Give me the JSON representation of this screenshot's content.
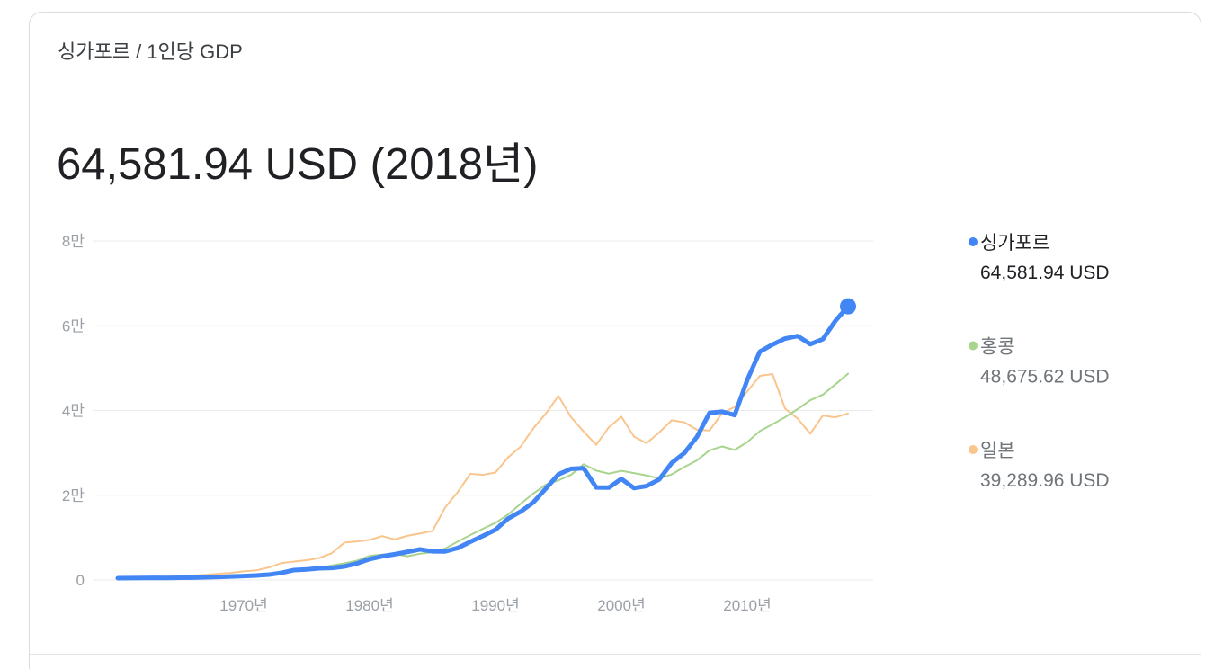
{
  "header": {
    "title": "싱가포르 / 1인당 GDP"
  },
  "headline": "64,581.94 USD (2018년)",
  "chart_data": {
    "type": "line",
    "x": [
      1960,
      1961,
      1962,
      1963,
      1964,
      1965,
      1966,
      1967,
      1968,
      1969,
      1970,
      1971,
      1972,
      1973,
      1974,
      1975,
      1976,
      1977,
      1978,
      1979,
      1980,
      1981,
      1982,
      1983,
      1984,
      1985,
      1986,
      1987,
      1988,
      1989,
      1990,
      1991,
      1992,
      1993,
      1994,
      1995,
      1996,
      1997,
      1998,
      1999,
      2000,
      2001,
      2002,
      2003,
      2004,
      2005,
      2006,
      2007,
      2008,
      2009,
      2010,
      2011,
      2012,
      2013,
      2014,
      2015,
      2016,
      2017,
      2018
    ],
    "xlim": [
      1958,
      2020
    ],
    "xticks": [
      {
        "value": 1970,
        "label": "1970년"
      },
      {
        "value": 1980,
        "label": "1980년"
      },
      {
        "value": 1990,
        "label": "1990년"
      },
      {
        "value": 2000,
        "label": "2000년"
      },
      {
        "value": 2010,
        "label": "2010년"
      }
    ],
    "ylim": [
      0,
      80000
    ],
    "yticks": [
      0,
      {
        "value": 20000,
        "label": "2만"
      },
      {
        "value": 40000,
        "label": "4만"
      },
      {
        "value": 60000,
        "label": "6만"
      },
      {
        "value": 80000,
        "label": "8만"
      }
    ],
    "grid": true,
    "series": [
      {
        "name": "싱가포르",
        "color": "#4285f4",
        "latest_label": "64,581.94 USD",
        "values": [
          428,
          449,
          472,
          511,
          485,
          517,
          567,
          626,
          708,
          813,
          926,
          1071,
          1264,
          1685,
          2342,
          2490,
          2766,
          2848,
          3193,
          3900,
          4928,
          5596,
          6078,
          6633,
          7228,
          6755,
          6736,
          7539,
          9018,
          10394,
          11862,
          14502,
          16135,
          18302,
          21578,
          24915,
          26233,
          26376,
          21829,
          21796,
          23853,
          21700,
          22160,
          23730,
          27609,
          29961,
          33769,
          39433,
          39722,
          38927,
          47237,
          53891,
          55546,
          56967,
          57563,
          55647,
          56828,
          61176,
          64581.94
        ]
      },
      {
        "name": "홍콩",
        "color": "#a8d48e",
        "latest_label": "48,675.62 USD",
        "values": [
          429,
          443,
          485,
          568,
          639,
          706,
          715,
          725,
          718,
          826,
          960,
          1106,
          1380,
          1887,
          2096,
          2253,
          2844,
          3425,
          3924,
          4570,
          5700,
          5991,
          6134,
          5595,
          6208,
          6543,
          7435,
          9071,
          10610,
          12098,
          13486,
          15466,
          17976,
          20396,
          22503,
          23497,
          24818,
          27330,
          25809,
          25092,
          25757,
          25230,
          24666,
          23977,
          24928,
          26650,
          28224,
          30594,
          31516,
          30697,
          32550,
          35142,
          36731,
          38404,
          40315,
          42432,
          43731,
          46166,
          48675.62
        ]
      },
      {
        "name": "일본",
        "color": "#f9c58d",
        "latest_label": "39,289.96 USD",
        "values": [
          479,
          563,
          634,
          718,
          835,
          919,
          1058,
          1228,
          1451,
          1669,
          2037,
          2272,
          2967,
          3997,
          4354,
          4659,
          5197,
          6335,
          8821,
          9105,
          9463,
          10361,
          9578,
          10425,
          10985,
          11585,
          17112,
          20745,
          25052,
          24813,
          25359,
          28925,
          31465,
          35766,
          39269,
          43440,
          38437,
          35022,
          31903,
          36027,
          38532,
          33846,
          32289,
          34808,
          37689,
          37218,
          35434,
          35275,
          39339,
          40855,
          44508,
          48168,
          48603,
          40454,
          38109,
          34524,
          38794,
          38387,
          39289.96
        ]
      }
    ]
  }
}
